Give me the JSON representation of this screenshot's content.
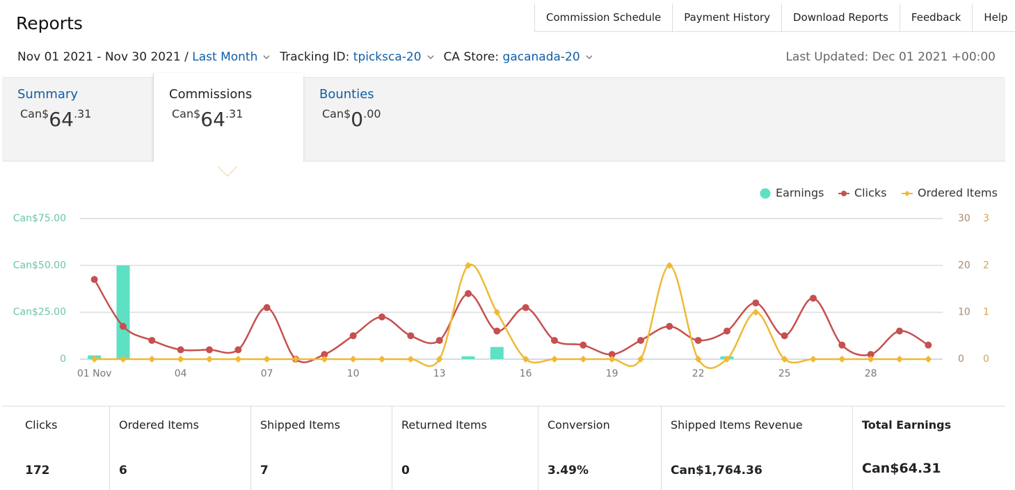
{
  "header": {
    "title": "Reports"
  },
  "nav": [
    "Commission Schedule",
    "Payment History",
    "Download Reports",
    "Feedback",
    "Help"
  ],
  "filters": {
    "date_range": "Nov 01 2021 - Nov 30 2021 /",
    "period": "Last Month",
    "tracking_label": "Tracking ID:",
    "tracking_id": "tpicksca-20",
    "store_label": "CA Store:",
    "store": "gacanada-20",
    "last_updated": "Last Updated: Dec 01 2021 +00:00"
  },
  "tabs": [
    {
      "label": "Summary",
      "currency": "Can$",
      "whole": "64",
      "fraction": ".31"
    },
    {
      "label": "Commissions",
      "currency": "Can$",
      "whole": "64",
      "fraction": ".31"
    },
    {
      "label": "Bounties",
      "currency": "Can$",
      "whole": "0",
      "fraction": ".00"
    }
  ],
  "chart_data": {
    "type": "combo",
    "x": [
      1,
      2,
      3,
      4,
      5,
      6,
      7,
      8,
      9,
      10,
      11,
      12,
      13,
      14,
      15,
      16,
      17,
      18,
      19,
      20,
      21,
      22,
      23,
      24,
      25,
      26,
      27,
      28,
      29,
      30
    ],
    "xlim": [
      0.5,
      30.5
    ],
    "xticks": [
      {
        "value": 1,
        "label": "01 Nov"
      },
      {
        "value": 4,
        "label": "04"
      },
      {
        "value": 7,
        "label": "07"
      },
      {
        "value": 10,
        "label": "10"
      },
      {
        "value": 13,
        "label": "13"
      },
      {
        "value": 16,
        "label": "16"
      },
      {
        "value": 19,
        "label": "19"
      },
      {
        "value": 22,
        "label": "22"
      },
      {
        "value": 25,
        "label": "25"
      },
      {
        "value": 28,
        "label": "28"
      }
    ],
    "ylim": [
      0,
      75
    ],
    "yticks": [
      0,
      {
        "value": 25,
        "label": "Can$25.00"
      },
      {
        "value": 50,
        "label": "Can$50.00"
      },
      {
        "value": 75,
        "label": "Can$75.00"
      }
    ],
    "y2lim": [
      0,
      30
    ],
    "y2ticks": [
      0,
      10,
      20,
      30
    ],
    "y3lim": [
      0,
      3
    ],
    "y3ticks": [
      0,
      1,
      2,
      3
    ],
    "grid": true,
    "series": [
      {
        "name": "Earnings",
        "type": "bar",
        "axis": "y",
        "color": "#5ee0c4",
        "values": [
          2,
          50,
          0,
          0,
          0,
          0,
          0,
          0,
          0,
          0,
          0,
          0,
          0,
          1.5,
          6.5,
          0,
          0,
          0,
          0,
          0,
          0,
          0,
          1.5,
          0,
          0,
          0,
          0,
          0,
          0,
          0
        ]
      },
      {
        "name": "Clicks",
        "type": "line",
        "axis": "y2",
        "color": "#c64f4f",
        "values": [
          17,
          7,
          4,
          2,
          2,
          2,
          11,
          0,
          1,
          5,
          9,
          5,
          4,
          14,
          6,
          11,
          4,
          3,
          1,
          4,
          7,
          4,
          6,
          12,
          5,
          13,
          3,
          1,
          6,
          3
        ]
      },
      {
        "name": "Ordered Items",
        "type": "line",
        "axis": "y3",
        "color": "#efb935",
        "values": [
          0,
          0,
          0,
          0,
          0,
          0,
          0,
          0,
          0,
          0,
          0,
          0,
          0,
          2,
          1,
          0,
          0,
          0,
          0,
          0,
          2,
          0,
          0,
          1,
          0,
          0,
          0,
          0,
          0,
          0
        ]
      }
    ]
  },
  "stats": [
    {
      "label": "Clicks",
      "value": "172"
    },
    {
      "label": "Ordered Items",
      "value": "6"
    },
    {
      "label": "Shipped Items",
      "value": "7"
    },
    {
      "label": "Returned Items",
      "value": "0"
    },
    {
      "label": "Conversion",
      "value": "3.49%"
    },
    {
      "label": "Shipped Items Revenue",
      "value": "Can$1,764.36"
    },
    {
      "label": "Total Earnings",
      "value": "Can$64.31"
    }
  ]
}
